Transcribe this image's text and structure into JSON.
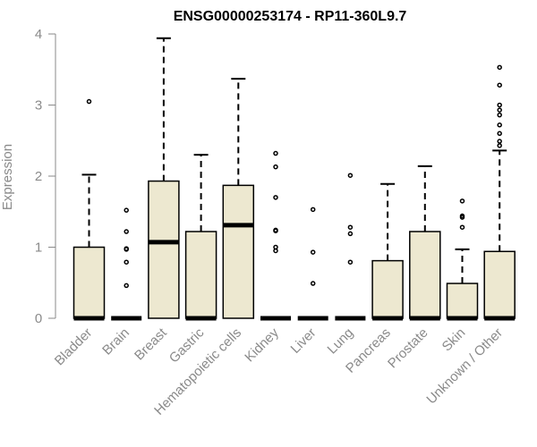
{
  "chart_data": {
    "type": "boxplot",
    "title": "ENSG00000253174 - RP11-360L9.7",
    "xlabel": "",
    "ylabel": "Expression",
    "ylim": [
      0,
      4
    ],
    "yticks": [
      0,
      1,
      2,
      3,
      4
    ],
    "grid": false,
    "legend": "none",
    "box_fill": "#ede8d0",
    "line_color": "#000000",
    "axis_color": "#8a8a8a",
    "categories": [
      "Bladder",
      "Brain",
      "Breast",
      "Gastric",
      "Hematopoietic cells",
      "Kidney",
      "Liver",
      "Lung",
      "Pancreas",
      "Prostate",
      "Skin",
      "Unknown / Other"
    ],
    "boxes": [
      {
        "q1": 0,
        "median": 0,
        "q3": 1.0,
        "whisker_low": 0,
        "whisker_high": 2.02,
        "outliers": [
          3.05
        ]
      },
      {
        "q1": 0,
        "median": 0,
        "q3": 0,
        "whisker_low": 0,
        "whisker_high": 0,
        "outliers": [
          1.52,
          1.22,
          0.98,
          0.97,
          0.79,
          0.46
        ]
      },
      {
        "q1": 0,
        "median": 1.07,
        "q3": 1.93,
        "whisker_low": 0,
        "whisker_high": 3.94,
        "outliers": []
      },
      {
        "q1": 0,
        "median": 0,
        "q3": 1.22,
        "whisker_low": 0,
        "whisker_high": 2.3,
        "outliers": []
      },
      {
        "q1": 0,
        "median": 1.31,
        "q3": 1.87,
        "whisker_low": 0,
        "whisker_high": 3.37,
        "outliers": []
      },
      {
        "q1": 0,
        "median": 0,
        "q3": 0,
        "whisker_low": 0,
        "whisker_high": 0,
        "outliers": [
          2.32,
          2.13,
          1.7,
          1.24,
          1.23,
          1.0,
          0.95
        ]
      },
      {
        "q1": 0,
        "median": 0,
        "q3": 0,
        "whisker_low": 0,
        "whisker_high": 0,
        "outliers": [
          1.53,
          0.93,
          0.49
        ]
      },
      {
        "q1": 0,
        "median": 0,
        "q3": 0,
        "whisker_low": 0,
        "whisker_high": 0,
        "outliers": [
          2.01,
          1.28,
          1.19,
          0.79
        ]
      },
      {
        "q1": 0,
        "median": 0,
        "q3": 0.81,
        "whisker_low": 0,
        "whisker_high": 1.89,
        "outliers": []
      },
      {
        "q1": 0,
        "median": 0,
        "q3": 1.22,
        "whisker_low": 0,
        "whisker_high": 2.14,
        "outliers": []
      },
      {
        "q1": 0,
        "median": 0,
        "q3": 0.49,
        "whisker_low": 0,
        "whisker_high": 0.97,
        "outliers": [
          1.65,
          1.44,
          1.42,
          1.28
        ]
      },
      {
        "q1": 0,
        "median": 0,
        "q3": 0.94,
        "whisker_low": 0,
        "whisker_high": 2.36,
        "outliers": [
          3.53,
          3.28,
          3.0,
          2.93,
          2.86,
          2.72,
          2.6,
          2.49,
          2.43
        ]
      }
    ]
  }
}
